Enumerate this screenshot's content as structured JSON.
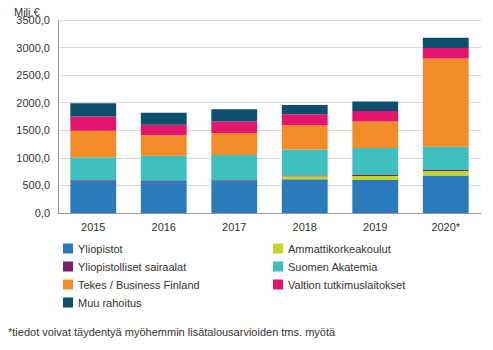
{
  "chart_data": {
    "type": "bar",
    "stacked": true,
    "grid": true,
    "legend": "bottom",
    "ylabel": "Milj.€",
    "annotations": [
      "*tiedot voivat täydentyä myöhemmin lisätalousarvioiden tms. myötä"
    ],
    "categories": [
      "2015",
      "2016",
      "2017",
      "2018",
      "2019",
      "2020*"
    ],
    "ylim": [
      0,
      3500
    ],
    "yticks": [
      {
        "value": 0,
        "label": "0,0"
      },
      {
        "value": 500,
        "label": "500,0"
      },
      {
        "value": 1000,
        "label": "1000,0"
      },
      {
        "value": 1500,
        "label": "1500,0"
      },
      {
        "value": 2000,
        "label": "2000,0"
      },
      {
        "value": 2500,
        "label": "2500,0"
      },
      {
        "value": 3000,
        "label": "3000,0"
      },
      {
        "value": 3500,
        "label": "3500,0"
      }
    ],
    "series": [
      {
        "name": "Yliopistot",
        "color": "#2b7bba",
        "values": [
          590,
          585,
          590,
          610,
          600,
          680
        ]
      },
      {
        "name": "Ammattikorkeakoulut",
        "color": "#c5d42a",
        "values": [
          0,
          0,
          0,
          55,
          70,
          80
        ]
      },
      {
        "name": "Yliopistolliset sairaalat",
        "color": "#7b1f6a",
        "values": [
          10,
          10,
          10,
          15,
          20,
          20
        ]
      },
      {
        "name": "Suomen Akatemia",
        "color": "#40bfbf",
        "values": [
          410,
          445,
          450,
          470,
          490,
          420
        ]
      },
      {
        "name": "Tekes / Business Finland",
        "color": "#f28c28",
        "values": [
          480,
          370,
          400,
          440,
          480,
          1600
        ]
      },
      {
        "name": "Valtion tutkimuslaitokset",
        "color": "#e2146b",
        "values": [
          260,
          190,
          210,
          200,
          190,
          190
        ]
      },
      {
        "name": "Muu rahoitus",
        "color": "#0c4f6d",
        "values": [
          240,
          220,
          220,
          170,
          170,
          190
        ]
      }
    ]
  }
}
